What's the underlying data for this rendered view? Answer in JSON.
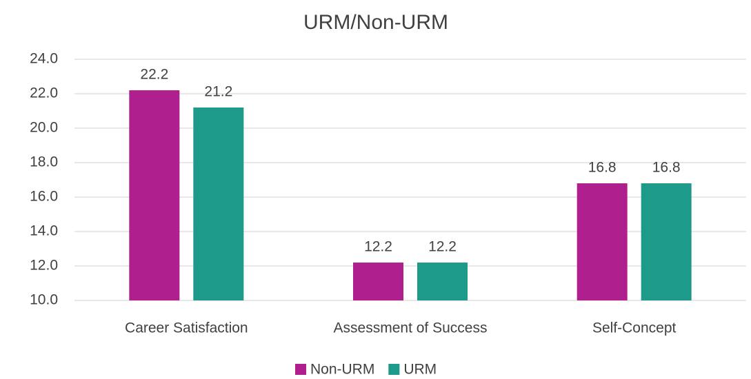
{
  "chart_data": {
    "type": "bar",
    "title": "URM/Non-URM",
    "categories": [
      "Career Satisfaction",
      "Assessment of Success",
      "Self-Concept"
    ],
    "series": [
      {
        "name": "Non-URM",
        "color": "#b01f8e",
        "values": [
          22.2,
          12.2,
          16.8
        ]
      },
      {
        "name": "URM",
        "color": "#1e9a8a",
        "values": [
          21.2,
          12.2,
          16.8
        ]
      }
    ],
    "ylim": [
      10,
      24
    ],
    "yticks": [
      {
        "value": 10,
        "label": "10.0"
      },
      {
        "value": 12,
        "label": "12.0"
      },
      {
        "value": 14,
        "label": "14.0"
      },
      {
        "value": 16,
        "label": "16.0"
      },
      {
        "value": 18,
        "label": "18.0"
      },
      {
        "value": 20,
        "label": "20.0"
      },
      {
        "value": 22,
        "label": "22.0"
      },
      {
        "value": 24,
        "label": "24.0"
      }
    ],
    "grid": true,
    "legend": "bottom"
  }
}
